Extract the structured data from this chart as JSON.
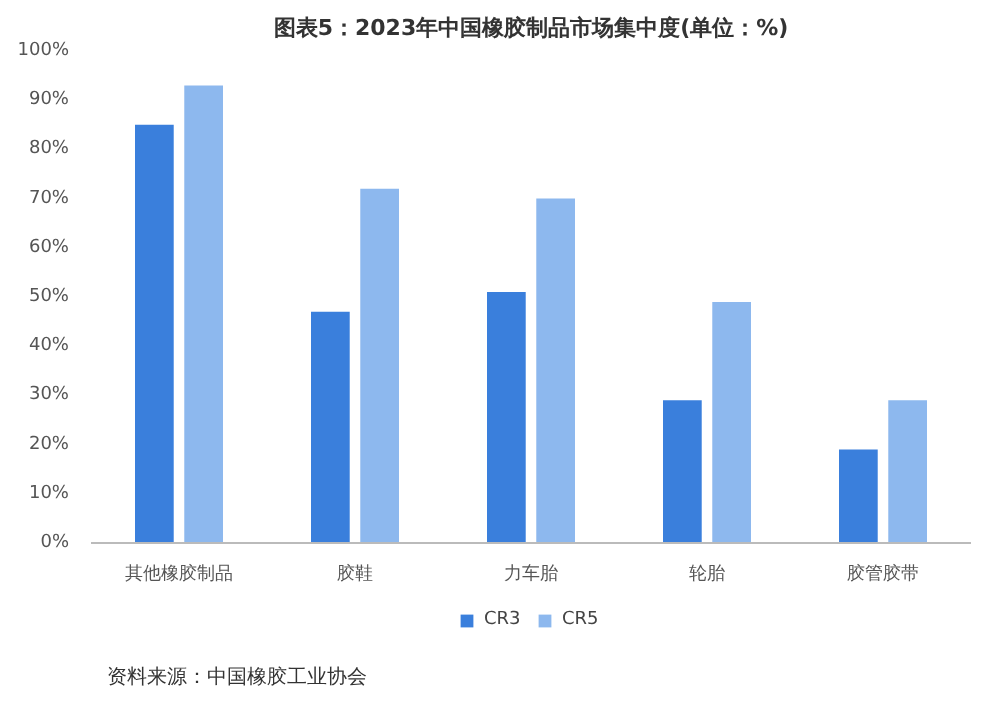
{
  "chart_data": {
    "type": "bar",
    "title": "图表5：2023年中国橡胶制品市场集中度(单位：%)",
    "categories": [
      "其他橡胶制品",
      "胶鞋",
      "力车胎",
      "轮胎",
      "胶管胶带"
    ],
    "series": [
      {
        "name": "CR3",
        "color": "#3a7fdc",
        "values": [
          85,
          47,
          51,
          29,
          19
        ]
      },
      {
        "name": "CR5",
        "color": "#8db8ee",
        "values": [
          93,
          72,
          70,
          49,
          29
        ]
      }
    ],
    "ylim": [
      0,
      100
    ],
    "yticks": [
      {
        "value": 0,
        "label": "0%"
      },
      {
        "value": 10,
        "label": "10%"
      },
      {
        "value": 20,
        "label": "20%"
      },
      {
        "value": 30,
        "label": "30%"
      },
      {
        "value": 40,
        "label": "40%"
      },
      {
        "value": 50,
        "label": "50%"
      },
      {
        "value": 60,
        "label": "60%"
      },
      {
        "value": 70,
        "label": "70%"
      },
      {
        "value": 80,
        "label": "80%"
      },
      {
        "value": 90,
        "label": "90%"
      },
      {
        "value": 100,
        "label": "100%"
      }
    ],
    "legend": "bottom",
    "annotations": [
      "资料来源：中国橡胶工业协会"
    ]
  }
}
